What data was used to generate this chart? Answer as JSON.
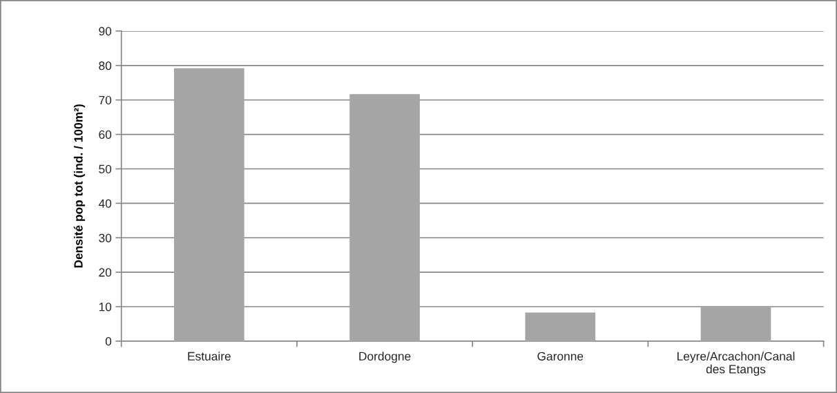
{
  "chart_data": {
    "type": "bar",
    "ylabel": "Densité pop tot (ind. / 100m²)",
    "categories": [
      "Estuaire",
      "Dordogne",
      "Garonne",
      "Leyre/Arcachon/Canal des Etangs"
    ],
    "values": [
      79.2,
      71.7,
      8.3,
      10
    ],
    "color": "#a5a5a5",
    "ylim": [
      0,
      90
    ],
    "yticks": [
      0,
      10,
      20,
      30,
      40,
      50,
      60,
      70,
      80,
      90
    ],
    "grid": "y",
    "legend": false
  }
}
